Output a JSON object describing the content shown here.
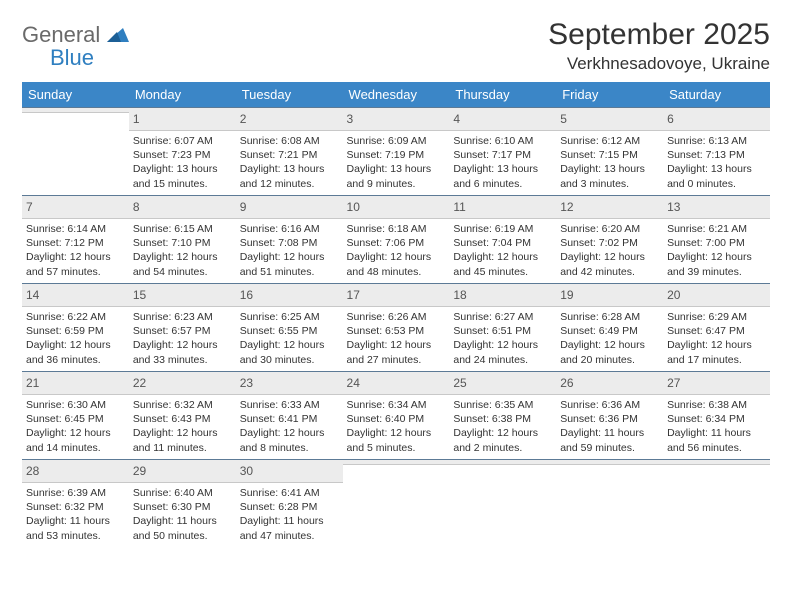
{
  "logo": {
    "word1": "General",
    "word2": "Blue"
  },
  "header": {
    "title": "September 2025",
    "location": "Verkhnesadovoye, Ukraine"
  },
  "colors": {
    "header_bg": "#3b86c7",
    "header_text": "#ffffff",
    "daynum_bg": "#ececec",
    "daynum_border_top": "#5c7a96",
    "logo_blue": "#2f7fc0",
    "logo_gray": "#6a6a6a"
  },
  "weekdays": [
    "Sunday",
    "Monday",
    "Tuesday",
    "Wednesday",
    "Thursday",
    "Friday",
    "Saturday"
  ],
  "weeks": [
    [
      {
        "blank": true
      },
      {
        "n": "1",
        "sunrise": "6:07 AM",
        "sunset": "7:23 PM",
        "daylight": "13 hours and 15 minutes."
      },
      {
        "n": "2",
        "sunrise": "6:08 AM",
        "sunset": "7:21 PM",
        "daylight": "13 hours and 12 minutes."
      },
      {
        "n": "3",
        "sunrise": "6:09 AM",
        "sunset": "7:19 PM",
        "daylight": "13 hours and 9 minutes."
      },
      {
        "n": "4",
        "sunrise": "6:10 AM",
        "sunset": "7:17 PM",
        "daylight": "13 hours and 6 minutes."
      },
      {
        "n": "5",
        "sunrise": "6:12 AM",
        "sunset": "7:15 PM",
        "daylight": "13 hours and 3 minutes."
      },
      {
        "n": "6",
        "sunrise": "6:13 AM",
        "sunset": "7:13 PM",
        "daylight": "13 hours and 0 minutes."
      }
    ],
    [
      {
        "n": "7",
        "sunrise": "6:14 AM",
        "sunset": "7:12 PM",
        "daylight": "12 hours and 57 minutes."
      },
      {
        "n": "8",
        "sunrise": "6:15 AM",
        "sunset": "7:10 PM",
        "daylight": "12 hours and 54 minutes."
      },
      {
        "n": "9",
        "sunrise": "6:16 AM",
        "sunset": "7:08 PM",
        "daylight": "12 hours and 51 minutes."
      },
      {
        "n": "10",
        "sunrise": "6:18 AM",
        "sunset": "7:06 PM",
        "daylight": "12 hours and 48 minutes."
      },
      {
        "n": "11",
        "sunrise": "6:19 AM",
        "sunset": "7:04 PM",
        "daylight": "12 hours and 45 minutes."
      },
      {
        "n": "12",
        "sunrise": "6:20 AM",
        "sunset": "7:02 PM",
        "daylight": "12 hours and 42 minutes."
      },
      {
        "n": "13",
        "sunrise": "6:21 AM",
        "sunset": "7:00 PM",
        "daylight": "12 hours and 39 minutes."
      }
    ],
    [
      {
        "n": "14",
        "sunrise": "6:22 AM",
        "sunset": "6:59 PM",
        "daylight": "12 hours and 36 minutes."
      },
      {
        "n": "15",
        "sunrise": "6:23 AM",
        "sunset": "6:57 PM",
        "daylight": "12 hours and 33 minutes."
      },
      {
        "n": "16",
        "sunrise": "6:25 AM",
        "sunset": "6:55 PM",
        "daylight": "12 hours and 30 minutes."
      },
      {
        "n": "17",
        "sunrise": "6:26 AM",
        "sunset": "6:53 PM",
        "daylight": "12 hours and 27 minutes."
      },
      {
        "n": "18",
        "sunrise": "6:27 AM",
        "sunset": "6:51 PM",
        "daylight": "12 hours and 24 minutes."
      },
      {
        "n": "19",
        "sunrise": "6:28 AM",
        "sunset": "6:49 PM",
        "daylight": "12 hours and 20 minutes."
      },
      {
        "n": "20",
        "sunrise": "6:29 AM",
        "sunset": "6:47 PM",
        "daylight": "12 hours and 17 minutes."
      }
    ],
    [
      {
        "n": "21",
        "sunrise": "6:30 AM",
        "sunset": "6:45 PM",
        "daylight": "12 hours and 14 minutes."
      },
      {
        "n": "22",
        "sunrise": "6:32 AM",
        "sunset": "6:43 PM",
        "daylight": "12 hours and 11 minutes."
      },
      {
        "n": "23",
        "sunrise": "6:33 AM",
        "sunset": "6:41 PM",
        "daylight": "12 hours and 8 minutes."
      },
      {
        "n": "24",
        "sunrise": "6:34 AM",
        "sunset": "6:40 PM",
        "daylight": "12 hours and 5 minutes."
      },
      {
        "n": "25",
        "sunrise": "6:35 AM",
        "sunset": "6:38 PM",
        "daylight": "12 hours and 2 minutes."
      },
      {
        "n": "26",
        "sunrise": "6:36 AM",
        "sunset": "6:36 PM",
        "daylight": "11 hours and 59 minutes."
      },
      {
        "n": "27",
        "sunrise": "6:38 AM",
        "sunset": "6:34 PM",
        "daylight": "11 hours and 56 minutes."
      }
    ],
    [
      {
        "n": "28",
        "sunrise": "6:39 AM",
        "sunset": "6:32 PM",
        "daylight": "11 hours and 53 minutes."
      },
      {
        "n": "29",
        "sunrise": "6:40 AM",
        "sunset": "6:30 PM",
        "daylight": "11 hours and 50 minutes."
      },
      {
        "n": "30",
        "sunrise": "6:41 AM",
        "sunset": "6:28 PM",
        "daylight": "11 hours and 47 minutes."
      },
      {
        "blank": true
      },
      {
        "blank": true
      },
      {
        "blank": true
      },
      {
        "blank": true
      }
    ]
  ],
  "labels": {
    "sunrise": "Sunrise:",
    "sunset": "Sunset:",
    "daylight": "Daylight:"
  }
}
